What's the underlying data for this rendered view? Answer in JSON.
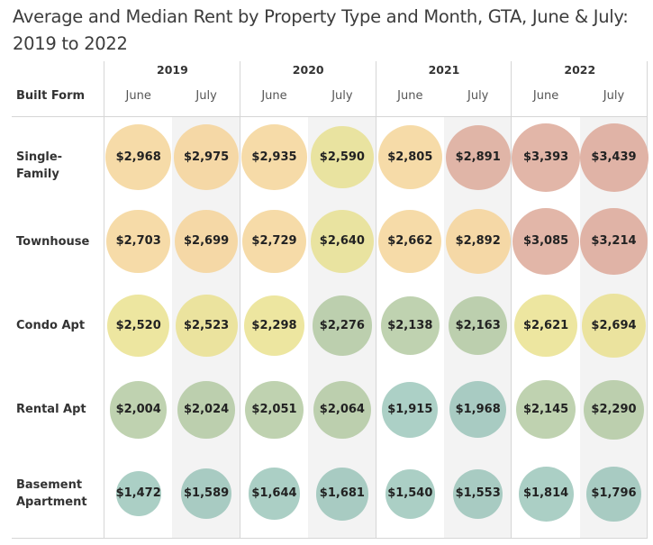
{
  "chart_data": {
    "type": "table",
    "title": "Average and Median Rent by Property Type and Month, GTA, June & July: 2019 to 2022",
    "row_header": "Built Form",
    "years": [
      "2019",
      "2020",
      "2021",
      "2022"
    ],
    "months": [
      "June",
      "July"
    ],
    "columns": [
      {
        "year": "2019",
        "month": "June"
      },
      {
        "year": "2019",
        "month": "July"
      },
      {
        "year": "2020",
        "month": "June"
      },
      {
        "year": "2020",
        "month": "July"
      },
      {
        "year": "2021",
        "month": "June"
      },
      {
        "year": "2021",
        "month": "July"
      },
      {
        "year": "2022",
        "month": "June"
      },
      {
        "year": "2022",
        "month": "July"
      }
    ],
    "rows": [
      {
        "label": "Single-Family",
        "values": [
          2968,
          2975,
          2935,
          2590,
          2805,
          2891,
          3393,
          3439
        ],
        "labels": [
          "$2,968",
          "$2,975",
          "$2,935",
          "$2,590",
          "$2,805",
          "$2,891",
          "$3,393",
          "$3,439"
        ],
        "colors": [
          "#f6dba8",
          "#f5d8a6",
          "#f6dba8",
          "#e9e3a0",
          "#f6dba8",
          "#e0b5a7",
          "#e2b6a8",
          "#e0b3a6"
        ]
      },
      {
        "label": "Townhouse",
        "values": [
          2703,
          2699,
          2729,
          2640,
          2662,
          2892,
          3085,
          3214
        ],
        "labels": [
          "$2,703",
          "$2,699",
          "$2,729",
          "$2,640",
          "$2,662",
          "$2,892",
          "$3,085",
          "$3,214"
        ],
        "colors": [
          "#f6dba8",
          "#f5d8a6",
          "#f6dba8",
          "#e9e3a0",
          "#f6dba8",
          "#f5d8a6",
          "#e2b6a8",
          "#e0b3a6"
        ]
      },
      {
        "label": "Condo Apt",
        "values": [
          2520,
          2523,
          2298,
          2276,
          2138,
          2163,
          2621,
          2694
        ],
        "labels": [
          "$2,520",
          "$2,523",
          "$2,298",
          "$2,276",
          "$2,138",
          "$2,163",
          "$2,621",
          "$2,694"
        ],
        "colors": [
          "#ede6a0",
          "#ebe39e",
          "#ede6a0",
          "#bccfae",
          "#bfd2b0",
          "#bccfae",
          "#ede6a0",
          "#ebe39e"
        ]
      },
      {
        "label": "Rental Apt",
        "values": [
          2004,
          2024,
          2051,
          2064,
          1915,
          1968,
          2145,
          2290
        ],
        "labels": [
          "$2,004",
          "$2,024",
          "$2,051",
          "$2,064",
          "$1,915",
          "$1,968",
          "$2,145",
          "$2,290"
        ],
        "colors": [
          "#bfd2b0",
          "#bccfae",
          "#bfd2b0",
          "#bccfae",
          "#acd0c6",
          "#a8cbc2",
          "#bfd2b0",
          "#bccfae"
        ]
      },
      {
        "label": "Basement Apartment",
        "label_lines": [
          "Basement",
          "Apartment"
        ],
        "values": [
          1472,
          1589,
          1644,
          1681,
          1540,
          1553,
          1814,
          1796
        ],
        "labels": [
          "$1,472",
          "$1,589",
          "$1,644",
          "$1,681",
          "$1,540",
          "$1,553",
          "$1,814",
          "$1,796"
        ],
        "colors": [
          "#abcfc5",
          "#a8cbc2",
          "#abcfc5",
          "#a8cbc2",
          "#abcfc5",
          "#a8cbc2",
          "#abcfc5",
          "#a8cbc2"
        ]
      }
    ],
    "encoding": {
      "size": "rent value",
      "color": "rent value"
    },
    "value_range": [
      1472,
      3439
    ]
  }
}
